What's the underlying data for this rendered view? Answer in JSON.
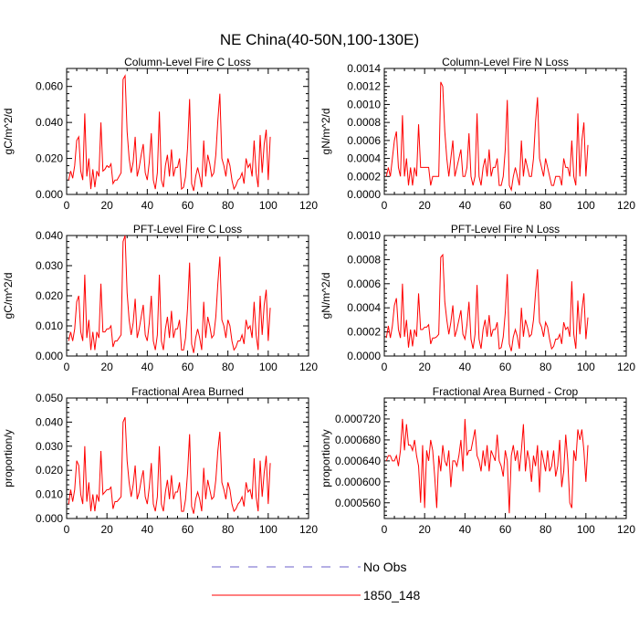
{
  "title": "NE China(40-50N,100-130E)",
  "colors": {
    "model": "#ff0000",
    "obs": "#6b5fc8",
    "axis": "#000000"
  },
  "legend": [
    {
      "label": "No Obs",
      "style": "dashed",
      "color": "#6b5fc8"
    },
    {
      "label": "1850_148",
      "style": "solid",
      "color": "#ff0000"
    }
  ],
  "chart_data": [
    {
      "type": "line",
      "title": "Column-Level Fire C Loss",
      "ylabel": "gC/m^2/d",
      "xlim": [
        0,
        120
      ],
      "ylim": [
        0,
        0.07
      ],
      "xticks": [
        0,
        20,
        40,
        60,
        80,
        100,
        120
      ],
      "xtick_labels": [
        "0",
        "20",
        "40",
        "60",
        "80",
        "100",
        "120"
      ],
      "yticks": [
        0,
        0.02,
        0.04,
        0.06
      ],
      "ytick_labels": [
        "0.000",
        "0.020",
        "0.040",
        "0.060"
      ],
      "series": [
        {
          "name": "1850_148",
          "x_start": 1,
          "values": [
            0.008,
            0.013,
            0.009,
            0.016,
            0.03,
            0.032,
            0.013,
            0.008,
            0.045,
            0.01,
            0.02,
            0.003,
            0.014,
            0.004,
            0.013,
            0.01,
            0.04,
            0.013,
            0.014,
            0.016,
            0.015,
            0.017,
            0.006,
            0.008,
            0.008,
            0.01,
            0.012,
            0.064,
            0.066,
            0.035,
            0.02,
            0.012,
            0.018,
            0.032,
            0.01,
            0.015,
            0.022,
            0.028,
            0.012,
            0.008,
            0.018,
            0.034,
            0.008,
            0.003,
            0.012,
            0.046,
            0.008,
            0.004,
            0.016,
            0.022,
            0.01,
            0.025,
            0.01,
            0.015,
            0.015,
            0.02,
            0.003,
            0.004,
            0.01,
            0.026,
            0.053,
            0.006,
            0.002,
            0.01,
            0.015,
            0.01,
            0.004,
            0.03,
            0.01,
            0.022,
            0.017,
            0.01,
            0.012,
            0.022,
            0.041,
            0.056,
            0.02,
            0.016,
            0.01,
            0.02,
            0.016,
            0.008,
            0.003,
            0.005,
            0.008,
            0.009,
            0.012,
            0.006,
            0.02,
            0.015,
            0.017,
            0.01,
            0.03,
            0.012,
            0.004,
            0.033,
            0.012,
            0.028,
            0.036,
            0.008,
            0.032
          ]
        }
      ]
    },
    {
      "type": "line",
      "title": "Column-Level Fire N Loss",
      "ylabel": "gN/m^2/d",
      "xlim": [
        0,
        120
      ],
      "ylim": [
        0,
        0.0014
      ],
      "xticks": [
        0,
        20,
        40,
        60,
        80,
        100,
        120
      ],
      "xtick_labels": [
        "0",
        "20",
        "40",
        "60",
        "80",
        "100",
        "120"
      ],
      "yticks": [
        0,
        0.0002,
        0.0004,
        0.0006,
        0.0008,
        0.001,
        0.0012,
        0.0014
      ],
      "ytick_labels": [
        "0.0000",
        "0.0002",
        "0.0004",
        "0.0006",
        "0.0008",
        "0.0010",
        "0.0012",
        "0.0014"
      ],
      "series": [
        {
          "name": "1850_148",
          "x_start": 1,
          "values": [
            0.0002,
            0.0003,
            0.0002,
            0.0004,
            0.0006,
            0.0007,
            0.0003,
            0.0002,
            0.00088,
            0.0002,
            0.0004,
            0.0001,
            0.0003,
            0.0001,
            0.0003,
            0.0002,
            0.00078,
            0.0003,
            0.0003,
            0.0003,
            0.0003,
            0.0003,
            0.0001,
            0.0002,
            0.0002,
            0.0002,
            0.0002,
            0.00125,
            0.0012,
            0.0007,
            0.0004,
            0.0002,
            0.0004,
            0.0006,
            0.0002,
            0.0003,
            0.0004,
            0.0005,
            0.0002,
            0.0002,
            0.0003,
            0.00068,
            0.0002,
            0.0001,
            0.0002,
            0.0009,
            0.0002,
            0.0001,
            0.0003,
            0.0004,
            0.0002,
            0.0005,
            0.0002,
            0.0003,
            0.0003,
            0.0004,
            0.0001,
            0.0001,
            0.0002,
            0.0005,
            0.00105,
            0.0001,
            5e-05,
            0.0002,
            0.0003,
            0.0002,
            0.0001,
            0.0006,
            0.0002,
            0.0004,
            0.0003,
            0.0002,
            0.0002,
            0.0004,
            0.0008,
            0.00108,
            0.0004,
            0.0003,
            0.0002,
            0.0004,
            0.0003,
            0.0002,
            0.0001,
            0.0001,
            0.0002,
            0.0002,
            0.0002,
            0.0001,
            0.0004,
            0.0003,
            0.0003,
            0.0002,
            0.0006,
            0.0002,
            0.0001,
            0.0009,
            0.0002,
            0.0006,
            0.0008,
            0.0002,
            0.00055
          ]
        }
      ]
    },
    {
      "type": "line",
      "title": "PFT-Level Fire C Loss",
      "ylabel": "gC/m^2/d",
      "xlim": [
        0,
        120
      ],
      "ylim": [
        0,
        0.04
      ],
      "xticks": [
        0,
        20,
        40,
        60,
        80,
        100,
        120
      ],
      "xtick_labels": [
        "0",
        "20",
        "40",
        "60",
        "80",
        "100",
        "120"
      ],
      "yticks": [
        0,
        0.01,
        0.02,
        0.03,
        0.04
      ],
      "ytick_labels": [
        "0.000",
        "0.010",
        "0.020",
        "0.030",
        "0.040"
      ],
      "series": [
        {
          "name": "1850_148",
          "x_start": 1,
          "values": [
            0.005,
            0.008,
            0.005,
            0.009,
            0.018,
            0.02,
            0.008,
            0.005,
            0.027,
            0.006,
            0.012,
            0.002,
            0.008,
            0.002,
            0.008,
            0.006,
            0.024,
            0.008,
            0.008,
            0.009,
            0.009,
            0.01,
            0.003,
            0.005,
            0.005,
            0.006,
            0.007,
            0.038,
            0.04,
            0.021,
            0.012,
            0.007,
            0.011,
            0.019,
            0.006,
            0.009,
            0.013,
            0.017,
            0.007,
            0.005,
            0.011,
            0.02,
            0.005,
            0.002,
            0.007,
            0.027,
            0.005,
            0.002,
            0.009,
            0.013,
            0.006,
            0.015,
            0.006,
            0.009,
            0.009,
            0.012,
            0.002,
            0.002,
            0.006,
            0.016,
            0.031,
            0.004,
            0.001,
            0.006,
            0.009,
            0.006,
            0.002,
            0.018,
            0.006,
            0.013,
            0.01,
            0.006,
            0.007,
            0.013,
            0.024,
            0.033,
            0.012,
            0.01,
            0.006,
            0.012,
            0.01,
            0.005,
            0.002,
            0.003,
            0.005,
            0.005,
            0.007,
            0.004,
            0.012,
            0.009,
            0.01,
            0.006,
            0.018,
            0.007,
            0.002,
            0.02,
            0.007,
            0.017,
            0.022,
            0.005,
            0.016
          ]
        }
      ]
    },
    {
      "type": "line",
      "title": "PFT-Level Fire N Loss",
      "ylabel": "gN/m^2/d",
      "xlim": [
        0,
        120
      ],
      "ylim": [
        0,
        0.001
      ],
      "xticks": [
        0,
        20,
        40,
        60,
        80,
        100,
        120
      ],
      "xtick_labels": [
        "0",
        "20",
        "40",
        "60",
        "80",
        "100",
        "120"
      ],
      "yticks": [
        0,
        0.0002,
        0.0004,
        0.0006,
        0.0008,
        0.001
      ],
      "ytick_labels": [
        "0.0000",
        "0.0002",
        "0.0004",
        "0.0006",
        "0.0008",
        "0.0010"
      ],
      "series": [
        {
          "name": "1850_148",
          "x_start": 1,
          "values": [
            0.00015,
            0.00025,
            0.00015,
            0.00025,
            0.00042,
            0.00048,
            0.00022,
            0.00015,
            0.0006,
            0.00016,
            0.0003,
            7e-05,
            0.00022,
            8e-05,
            0.00022,
            0.00016,
            0.00052,
            0.00022,
            0.00022,
            0.00024,
            0.00024,
            0.00026,
            0.0001,
            0.00015,
            0.00015,
            0.00016,
            0.00018,
            0.00082,
            0.00084,
            0.00045,
            0.0003,
            0.00018,
            0.00028,
            0.00042,
            0.00016,
            0.00022,
            0.0003,
            0.00038,
            0.00018,
            0.00014,
            0.00026,
            0.00045,
            0.00014,
            6e-05,
            0.00018,
            0.00059,
            0.00014,
            6e-05,
            0.00022,
            0.0003,
            0.00016,
            0.00034,
            0.00016,
            0.00022,
            0.00022,
            0.00028,
            6e-05,
            7e-05,
            0.00016,
            0.00036,
            0.00068,
            0.0001,
            4e-05,
            0.00016,
            0.00022,
            0.00016,
            6e-05,
            0.0004,
            0.00016,
            0.0003,
            0.00024,
            0.00016,
            0.00018,
            0.0003,
            0.00052,
            0.00072,
            0.00028,
            0.00024,
            0.00016,
            0.00028,
            0.00024,
            0.00014,
            6e-05,
            8e-05,
            0.00014,
            0.00014,
            0.00018,
            0.0001,
            0.00028,
            0.00022,
            0.00024,
            0.00016,
            0.00062,
            0.00018,
            6e-05,
            0.00046,
            0.00018,
            0.00038,
            0.00052,
            0.00014,
            0.00032
          ]
        }
      ]
    },
    {
      "type": "line",
      "title": "Fractional Area Burned",
      "ylabel": "proportion/y",
      "xlim": [
        0,
        120
      ],
      "ylim": [
        0,
        0.05
      ],
      "xticks": [
        0,
        20,
        40,
        60,
        80,
        100,
        120
      ],
      "xtick_labels": [
        "0",
        "20",
        "40",
        "60",
        "80",
        "100",
        "120"
      ],
      "yticks": [
        0,
        0.01,
        0.02,
        0.03,
        0.04,
        0.05
      ],
      "ytick_labels": [
        "0.000",
        "0.010",
        "0.020",
        "0.030",
        "0.040",
        "0.050"
      ],
      "series": [
        {
          "name": "1850_148",
          "x_start": 1,
          "values": [
            0.006,
            0.012,
            0.007,
            0.012,
            0.024,
            0.022,
            0.01,
            0.006,
            0.03,
            0.007,
            0.015,
            0.003,
            0.01,
            0.003,
            0.01,
            0.007,
            0.028,
            0.01,
            0.011,
            0.012,
            0.012,
            0.013,
            0.004,
            0.007,
            0.007,
            0.008,
            0.009,
            0.04,
            0.042,
            0.024,
            0.015,
            0.009,
            0.014,
            0.022,
            0.008,
            0.011,
            0.016,
            0.02,
            0.009,
            0.006,
            0.013,
            0.023,
            0.006,
            0.003,
            0.009,
            0.03,
            0.006,
            0.003,
            0.011,
            0.016,
            0.008,
            0.018,
            0.008,
            0.011,
            0.011,
            0.015,
            0.003,
            0.003,
            0.008,
            0.019,
            0.035,
            0.005,
            0.002,
            0.008,
            0.011,
            0.008,
            0.003,
            0.021,
            0.008,
            0.016,
            0.012,
            0.008,
            0.009,
            0.016,
            0.028,
            0.036,
            0.015,
            0.012,
            0.008,
            0.015,
            0.012,
            0.006,
            0.003,
            0.004,
            0.006,
            0.007,
            0.009,
            0.005,
            0.015,
            0.011,
            0.012,
            0.008,
            0.025,
            0.009,
            0.003,
            0.024,
            0.009,
            0.019,
            0.026,
            0.006,
            0.023
          ]
        }
      ]
    },
    {
      "type": "line",
      "title": "Fractional Area Burned - Crop",
      "ylabel": "proportion/y",
      "xlim": [
        0,
        120
      ],
      "ylim": [
        0.00053,
        0.00076
      ],
      "xticks": [
        0,
        20,
        40,
        60,
        80,
        100,
        120
      ],
      "xtick_labels": [
        "0",
        "20",
        "40",
        "60",
        "80",
        "100",
        "120"
      ],
      "yticks": [
        0.00056,
        0.0006,
        0.00064,
        0.00068,
        0.00072
      ],
      "ytick_labels": [
        "0.000560",
        "0.000600",
        "0.000640",
        "0.000680",
        "0.000720"
      ],
      "series": [
        {
          "name": "1850_148",
          "x_start": 1,
          "values": [
            0.00064,
            0.00065,
            0.00065,
            0.00064,
            0.00064,
            0.00065,
            0.00063,
            0.00066,
            0.00072,
            0.00066,
            0.00071,
            0.00067,
            0.00067,
            0.00066,
            0.00068,
            0.00065,
            0.00063,
            0.00056,
            0.00067,
            0.00055,
            0.00066,
            0.00064,
            0.00068,
            0.00066,
            0.00061,
            0.00055,
            0.00065,
            0.00062,
            0.00067,
            0.00064,
            0.00063,
            0.00066,
            0.00059,
            0.00064,
            0.00064,
            0.00063,
            0.00065,
            0.00068,
            0.00062,
            0.00072,
            0.00065,
            0.00066,
            0.00066,
            0.00068,
            0.0007,
            0.00065,
            0.00064,
            0.00062,
            0.00066,
            0.00063,
            0.00067,
            0.00062,
            0.00066,
            0.00065,
            0.00064,
            0.00069,
            0.00064,
            0.00063,
            0.00061,
            0.00066,
            0.00064,
            0.00054,
            0.00065,
            0.00067,
            0.00064,
            0.00066,
            0.00062,
            0.00066,
            0.00071,
            0.00062,
            0.00066,
            0.00064,
            0.0006,
            0.00065,
            0.00063,
            0.00067,
            0.00058,
            0.00066,
            0.00064,
            0.00062,
            0.00066,
            0.00062,
            0.00063,
            0.00066,
            0.00061,
            0.00063,
            0.00068,
            0.00059,
            0.00062,
            0.00069,
            0.00064,
            0.00056,
            0.00055,
            0.00066,
            0.00064,
            0.0007,
            0.00068,
            0.0007,
            0.00066,
            0.0006,
            0.00067
          ]
        }
      ]
    }
  ]
}
